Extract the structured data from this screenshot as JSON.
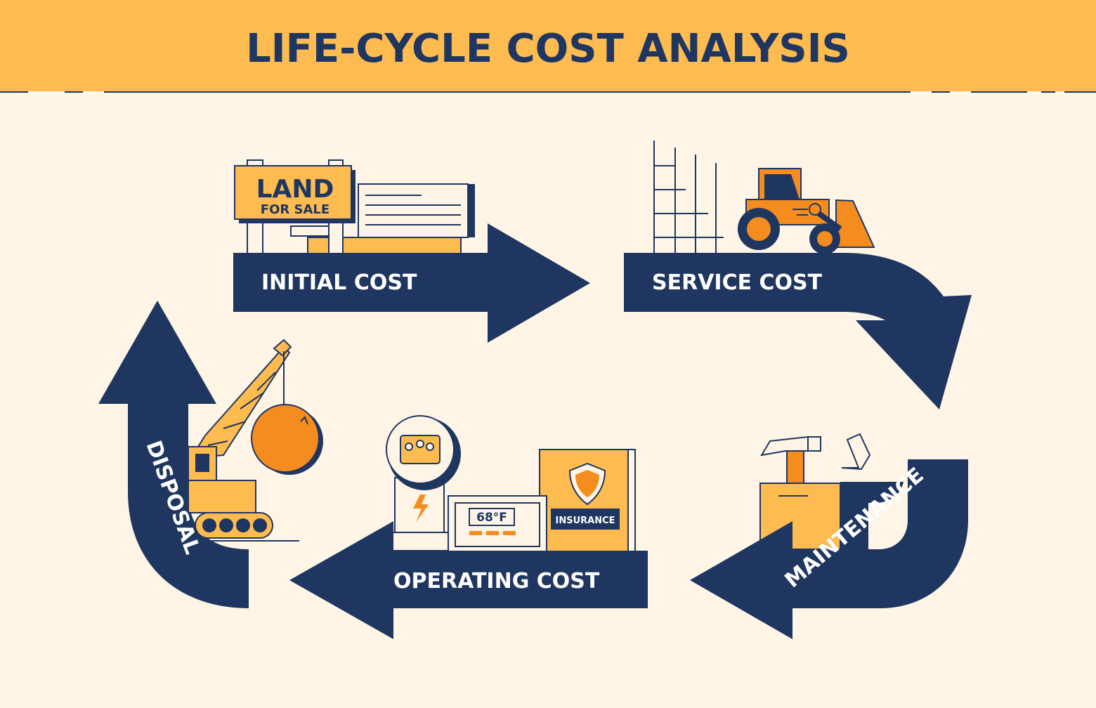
{
  "title": "LIFE-CYCLE COST ANALYSIS",
  "stages": {
    "initial": "INITIAL COST",
    "service": "SERVICE COST",
    "maintenance": "MAINTENANCE",
    "operating": "OPERATING COST",
    "disposal": "DISPOSAL"
  },
  "sign": {
    "big": "LAND",
    "small": "FOR SALE"
  },
  "thermostat": "68°F",
  "policy": "INSURANCE",
  "colors": {
    "navy": "#1e3660",
    "yellow": "#fdbb50",
    "orange": "#f48c1f",
    "cream": "#fef5e6"
  }
}
